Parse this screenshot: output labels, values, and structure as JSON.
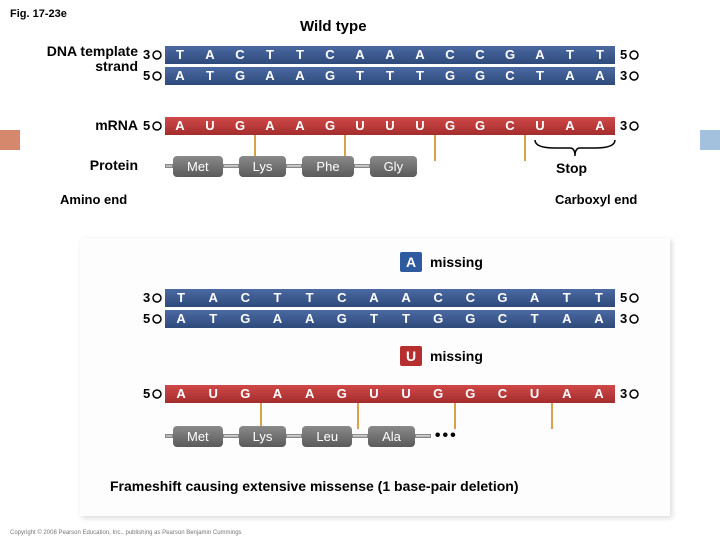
{
  "figLabel": "Fig. 17-23e",
  "titles": {
    "wild": "Wild type"
  },
  "labels": {
    "dnaTemplate": "DNA template strand",
    "mrna": "mRNA",
    "protein": "Protein",
    "aminoEnd": "Amino end",
    "carboxylEnd": "Carboxyl end",
    "stop": "Stop",
    "missing": "missing",
    "caption": "Frameshift causing extensive missense (1 base-pair deletion)"
  },
  "primes": {
    "3": "3",
    "5": "5"
  },
  "wt": {
    "dnaTop": [
      "T",
      "A",
      "C",
      "T",
      "T",
      "C",
      "A",
      "A",
      "A",
      "C",
      "C",
      "G",
      "A",
      "T",
      "T"
    ],
    "dnaBottom": [
      "A",
      "T",
      "G",
      "A",
      "A",
      "G",
      "T",
      "T",
      "T",
      "G",
      "G",
      "C",
      "T",
      "A",
      "A"
    ],
    "mrna": [
      "A",
      "U",
      "G",
      "A",
      "A",
      "G",
      "U",
      "U",
      "U",
      "G",
      "G",
      "C",
      "U",
      "A",
      "A"
    ],
    "protein": [
      "Met",
      "Lys",
      "Phe",
      "Gly"
    ]
  },
  "mut": {
    "missingDNA": "A",
    "missingRNA": "U",
    "dnaTop": [
      "T",
      "A",
      "C",
      "T",
      "T",
      "C",
      "A",
      "A",
      "C",
      "C",
      "G",
      "A",
      "T",
      "T"
    ],
    "dnaBottom": [
      "A",
      "T",
      "G",
      "A",
      "A",
      "G",
      "T",
      "T",
      "G",
      "G",
      "C",
      "T",
      "A",
      "A"
    ],
    "mrna": [
      "A",
      "U",
      "G",
      "A",
      "A",
      "G",
      "U",
      "U",
      "G",
      "G",
      "C",
      "U",
      "A",
      "A"
    ],
    "protein": [
      "Met",
      "Lys",
      "Leu",
      "Ala"
    ]
  },
  "colors": {
    "dnaBar": "#3a5a8c",
    "mrnaBar": "#b8342f",
    "aaBox": "#6c6c6c",
    "codonMark": "#d9a24a"
  }
}
